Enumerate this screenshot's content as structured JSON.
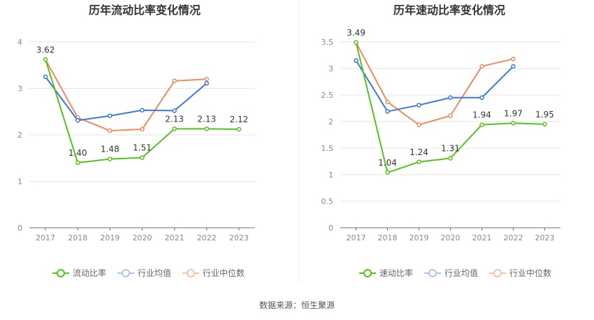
{
  "source_label": "数据来源：恒生聚源",
  "chart_data": [
    {
      "type": "line",
      "title": "历年流动比率变化情况",
      "categories": [
        "2017",
        "2018",
        "2019",
        "2020",
        "2021",
        "2022",
        "2023"
      ],
      "ylim": [
        0,
        4
      ],
      "yticks": [
        "0",
        "1",
        "2",
        "3",
        "4"
      ],
      "series": [
        {
          "name": "流动比率",
          "color": "#52c41a",
          "values": [
            3.62,
            1.4,
            1.48,
            1.51,
            2.13,
            2.13,
            2.12
          ],
          "labels": [
            "3.62",
            "1.40",
            "1.48",
            "1.51",
            "2.13",
            "2.13",
            "2.12"
          ]
        },
        {
          "name": "行业均值",
          "color": "#3b78d8",
          "values": [
            3.25,
            2.31,
            2.41,
            2.53,
            2.52,
            3.11,
            null
          ]
        },
        {
          "name": "行业中位数",
          "color": "#f08a5d",
          "values": [
            3.62,
            2.37,
            2.09,
            2.12,
            3.16,
            3.2,
            null
          ]
        }
      ]
    },
    {
      "type": "line",
      "title": "历年速动比率变化情况",
      "categories": [
        "2017",
        "2018",
        "2019",
        "2020",
        "2021",
        "2022",
        "2023"
      ],
      "ylim": [
        0,
        3.5
      ],
      "yticks": [
        "0",
        "0.5",
        "1",
        "1.5",
        "2",
        "2.5",
        "3",
        "3.5"
      ],
      "series": [
        {
          "name": "速动比率",
          "color": "#52c41a",
          "values": [
            3.49,
            1.04,
            1.24,
            1.31,
            1.94,
            1.97,
            1.95
          ],
          "labels": [
            "3.49",
            "1.04",
            "1.24",
            "1.31",
            "1.94",
            "1.97",
            "1.95"
          ]
        },
        {
          "name": "行业均值",
          "color": "#3b78d8",
          "values": [
            3.15,
            2.19,
            2.31,
            2.45,
            2.45,
            3.04,
            null
          ]
        },
        {
          "name": "行业中位数",
          "color": "#f08a5d",
          "values": [
            3.49,
            2.37,
            1.94,
            2.11,
            3.04,
            3.18,
            null
          ]
        }
      ]
    }
  ]
}
